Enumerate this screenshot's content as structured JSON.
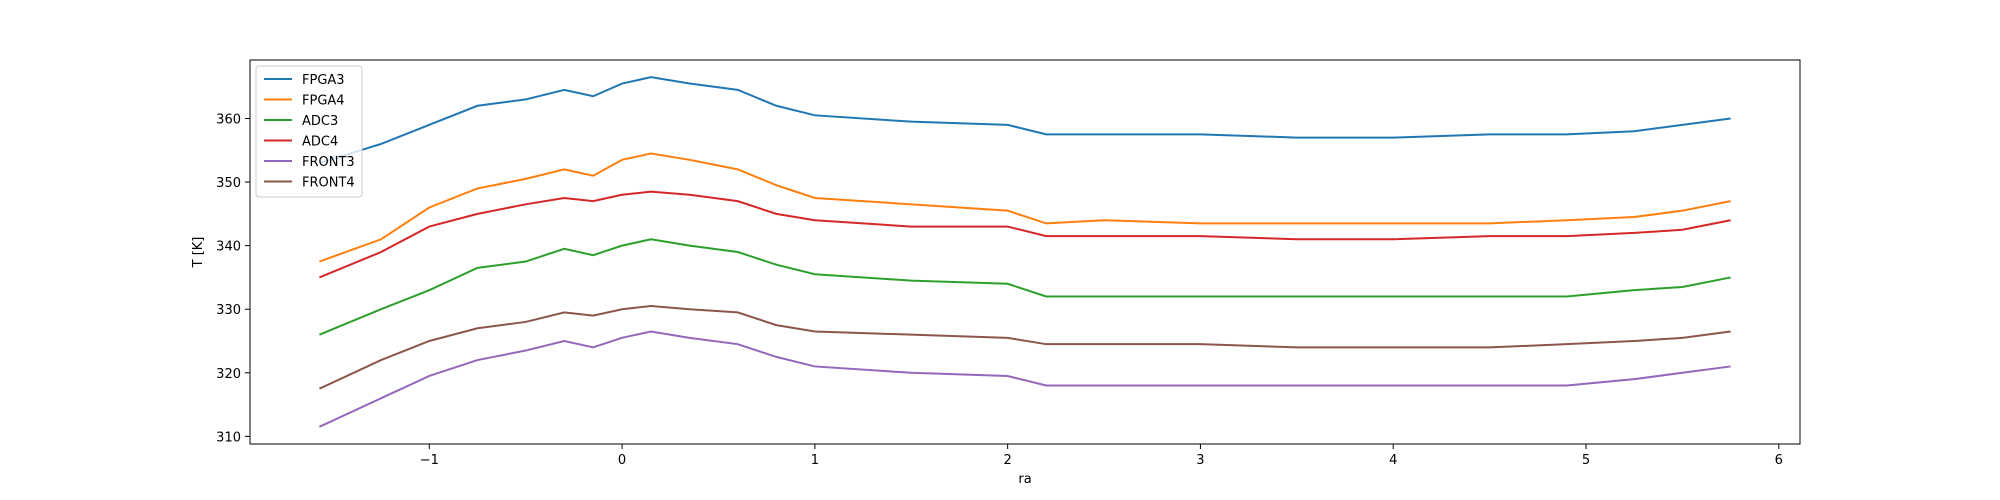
{
  "chart_data": {
    "type": "line",
    "xlabel": "ra",
    "ylabel": "T [K]",
    "x": [
      -1.57,
      -1.25,
      -1,
      -0.75,
      -0.5,
      -0.3,
      -0.15,
      0,
      0.15,
      0.35,
      0.6,
      0.8,
      1,
      1.5,
      2,
      2.2,
      2.5,
      3,
      3.5,
      4,
      4.5,
      4.9,
      5.25,
      5.5,
      5.75
    ],
    "series": [
      {
        "name": "FPGA3",
        "color": "#1f77b4",
        "values": [
          353,
          356,
          359,
          362,
          363,
          364.5,
          363.5,
          365.5,
          366.5,
          365.5,
          364.5,
          362,
          360.5,
          359.5,
          359,
          357.5,
          357.5,
          357.5,
          357,
          357,
          357.5,
          357.5,
          358,
          359,
          360
        ]
      },
      {
        "name": "FPGA4",
        "color": "#ff7f0e",
        "values": [
          337.5,
          341,
          346,
          349,
          350.5,
          352,
          351,
          353.5,
          354.5,
          353.5,
          352,
          349.5,
          347.5,
          346.5,
          345.5,
          343.5,
          344,
          343.5,
          343.5,
          343.5,
          343.5,
          344,
          344.5,
          345.5,
          347
        ]
      },
      {
        "name": "ADC3",
        "color": "#2ca02c",
        "values": [
          326,
          330,
          333,
          336.5,
          337.5,
          339.5,
          338.5,
          340,
          341,
          340,
          339,
          337,
          335.5,
          334.5,
          334,
          332,
          332,
          332,
          332,
          332,
          332,
          332,
          333,
          333.5,
          335
        ]
      },
      {
        "name": "ADC4",
        "color": "#d62728",
        "values": [
          335,
          339,
          343,
          345,
          346.5,
          347.5,
          347,
          348,
          348.5,
          348,
          347,
          345,
          344,
          343,
          343,
          341.5,
          341.5,
          341.5,
          341,
          341,
          341.5,
          341.5,
          342,
          342.5,
          344
        ]
      },
      {
        "name": "FRONT3",
        "color": "#9467bd",
        "values": [
          311.5,
          316,
          319.5,
          322,
          323.5,
          325,
          324,
          325.5,
          326.5,
          325.5,
          324.5,
          322.5,
          321,
          320,
          319.5,
          318,
          318,
          318,
          318,
          318,
          318,
          318,
          319,
          320,
          321
        ]
      },
      {
        "name": "FRONT4",
        "color": "#8c564b",
        "values": [
          317.5,
          322,
          325,
          327,
          328,
          329.5,
          329,
          330,
          330.5,
          330,
          329.5,
          327.5,
          326.5,
          326,
          325.5,
          324.5,
          324.5,
          324.5,
          324,
          324,
          324,
          324.5,
          325,
          325.5,
          326.5
        ]
      }
    ],
    "xlim": [
      -1.93,
      6.11
    ],
    "xticks": [
      {
        "value": -1,
        "label": "−1"
      },
      0,
      1,
      2,
      3,
      4,
      5,
      6
    ],
    "ylim": [
      308.8,
      369.2
    ],
    "yticks": [
      310,
      320,
      330,
      340,
      350,
      360
    ],
    "legend": "upper left"
  }
}
